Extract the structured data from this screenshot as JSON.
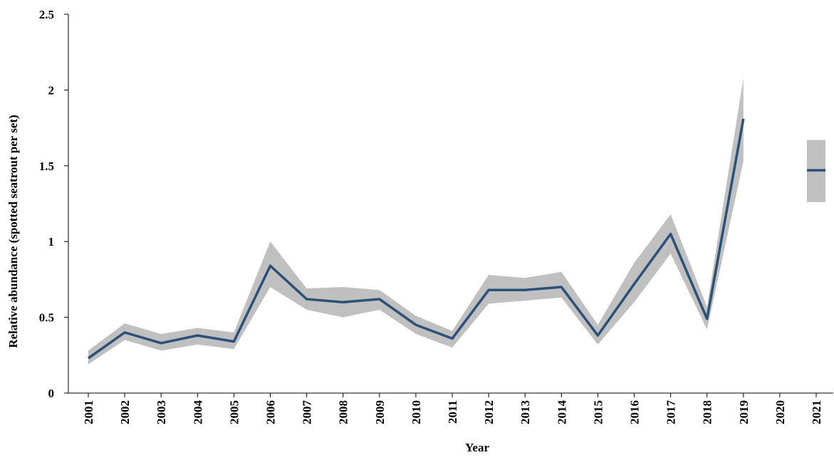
{
  "chart_data": {
    "type": "line",
    "x_label": "Year",
    "y_label": "Relative abundance  (spotted seatrout per set)",
    "categories": [
      "2001",
      "2002",
      "2003",
      "2004",
      "2005",
      "2006",
      "2007",
      "2008",
      "2009",
      "2010",
      "2011",
      "2012",
      "2013",
      "2014",
      "2015",
      "2016",
      "2017",
      "2018",
      "2019",
      "2020",
      "2021"
    ],
    "series": [
      {
        "color": "#2b5179",
        "band_color": "#c0c0c0",
        "values": [
          0.23,
          0.4,
          0.33,
          0.38,
          0.34,
          0.84,
          0.62,
          0.6,
          0.62,
          0.45,
          0.36,
          0.68,
          0.68,
          0.7,
          0.38,
          0.72,
          1.05,
          0.49,
          1.81,
          null,
          1.47
        ],
        "upper": [
          0.28,
          0.46,
          0.39,
          0.43,
          0.4,
          1.0,
          0.69,
          0.7,
          0.68,
          0.51,
          0.41,
          0.78,
          0.76,
          0.8,
          0.45,
          0.86,
          1.18,
          0.57,
          2.08,
          null,
          1.67
        ],
        "lower": [
          0.19,
          0.35,
          0.28,
          0.32,
          0.29,
          0.7,
          0.55,
          0.5,
          0.55,
          0.39,
          0.3,
          0.59,
          0.61,
          0.63,
          0.32,
          0.6,
          0.92,
          0.42,
          1.53,
          null,
          1.26
        ]
      }
    ],
    "ylim": [
      0,
      2.5
    ],
    "yticks": [
      0,
      0.5,
      1,
      1.5,
      2,
      2.5
    ]
  }
}
